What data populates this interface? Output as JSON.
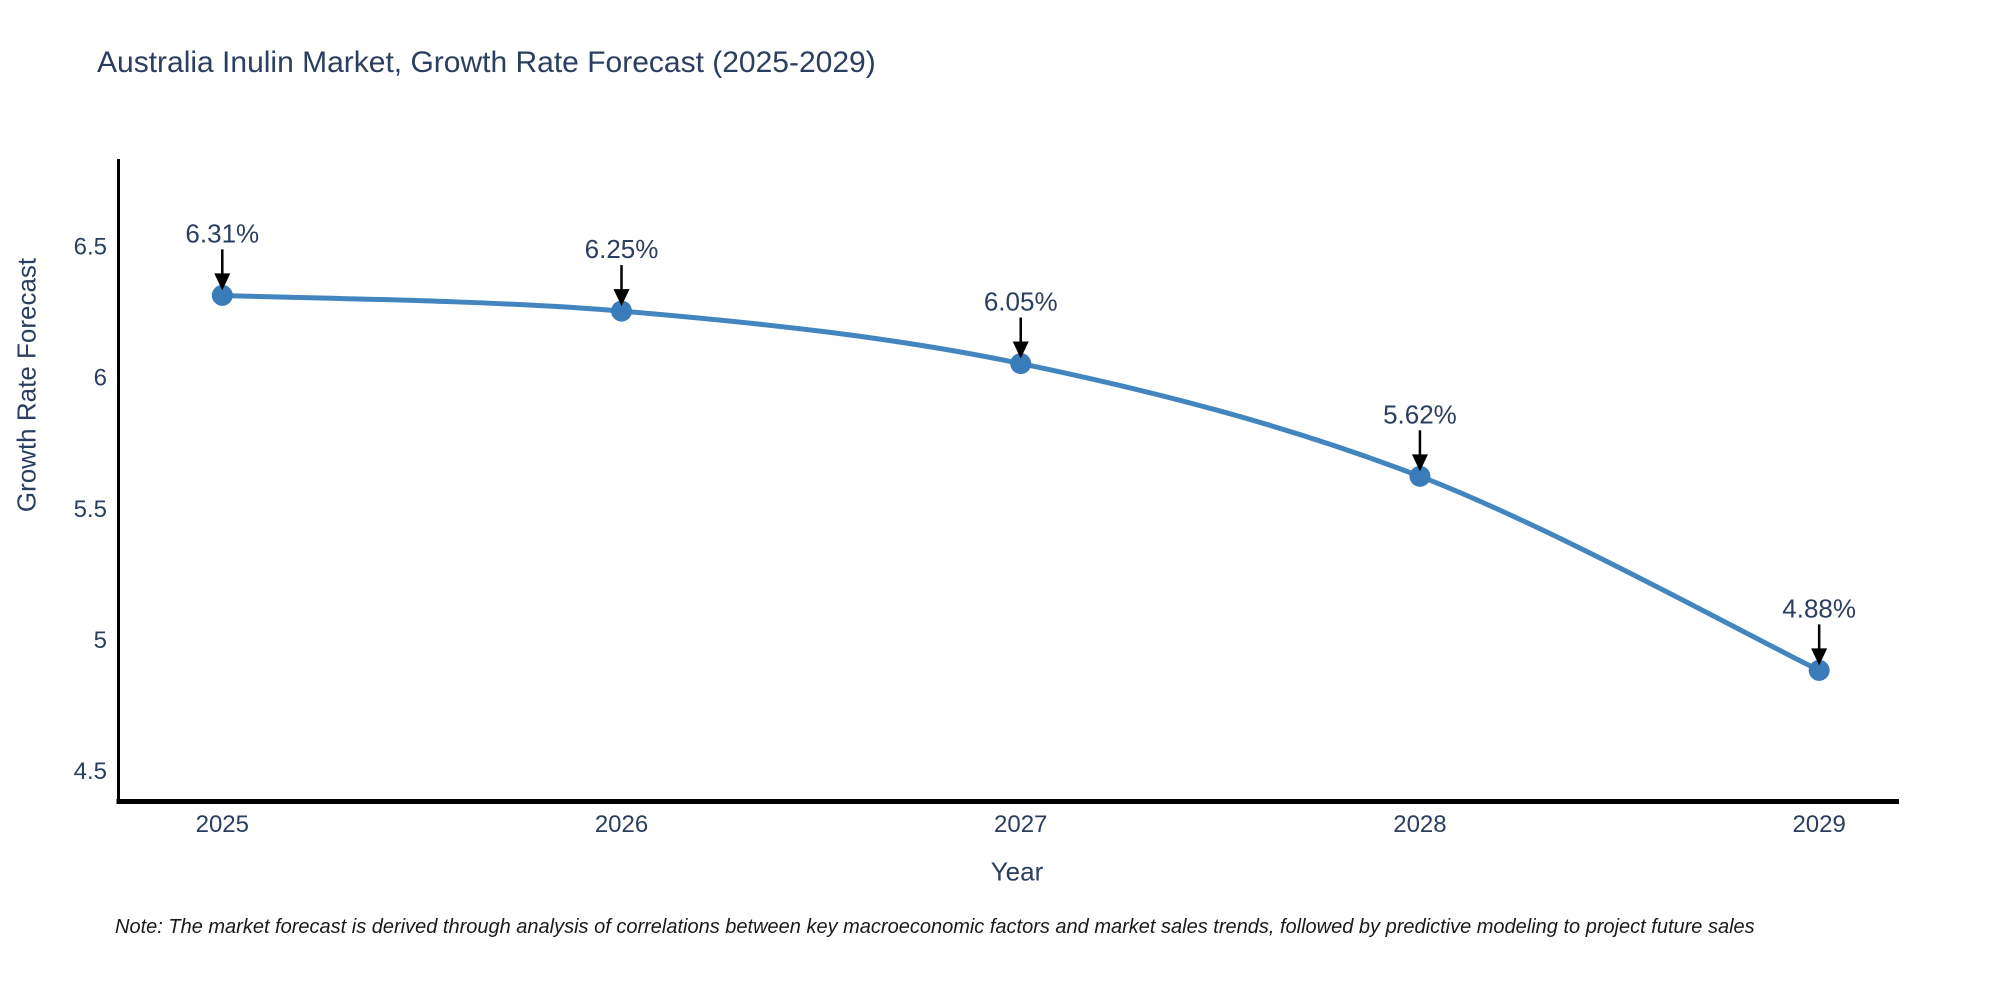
{
  "page": {
    "background_color": "#ffffff"
  },
  "chart": {
    "title": "Australia Inulin Market, Growth Rate Forecast (2025-2029)",
    "x_axis_title": "Year",
    "y_axis_title": "Growth Rate Forecast",
    "note": "Note: The market forecast is derived through analysis of correlations between key macroeconomic factors and market sales trends, followed by predictive modeling to project future sales",
    "colors": {
      "line": "#4385bf",
      "marker": "#3a7cba",
      "axis_line": "#000000",
      "label_text": "#2a3f5f",
      "annotation_text": "#2a3f5f",
      "arrow": "#000000",
      "note_text": "#1a1a1a"
    }
  },
  "chart_data": {
    "type": "line",
    "line_shape": "spline",
    "markers": true,
    "grid": false,
    "legend": "none",
    "title": "Australia Inulin Market, Growth Rate Forecast (2025-2029)",
    "xlabel": "Year",
    "ylabel": "Growth Rate Forecast",
    "x": [
      2025,
      2026,
      2027,
      2028,
      2029
    ],
    "y": [
      6.31,
      6.25,
      6.05,
      5.62,
      4.88
    ],
    "point_labels": [
      "6.31%",
      "6.25%",
      "6.05%",
      "5.62%",
      "4.88%"
    ],
    "xtick_labels": [
      "2025",
      "2026",
      "2027",
      "2028",
      "2029"
    ],
    "yticks": [
      4.5,
      5,
      5.5,
      6,
      6.5
    ],
    "ytick_labels": [
      "4.5",
      "5",
      "5.5",
      "6",
      "6.5"
    ],
    "xlim": [
      2024.74,
      2029.2
    ],
    "ylim": [
      4.38,
      6.83
    ],
    "annotations_have_arrows": true
  }
}
